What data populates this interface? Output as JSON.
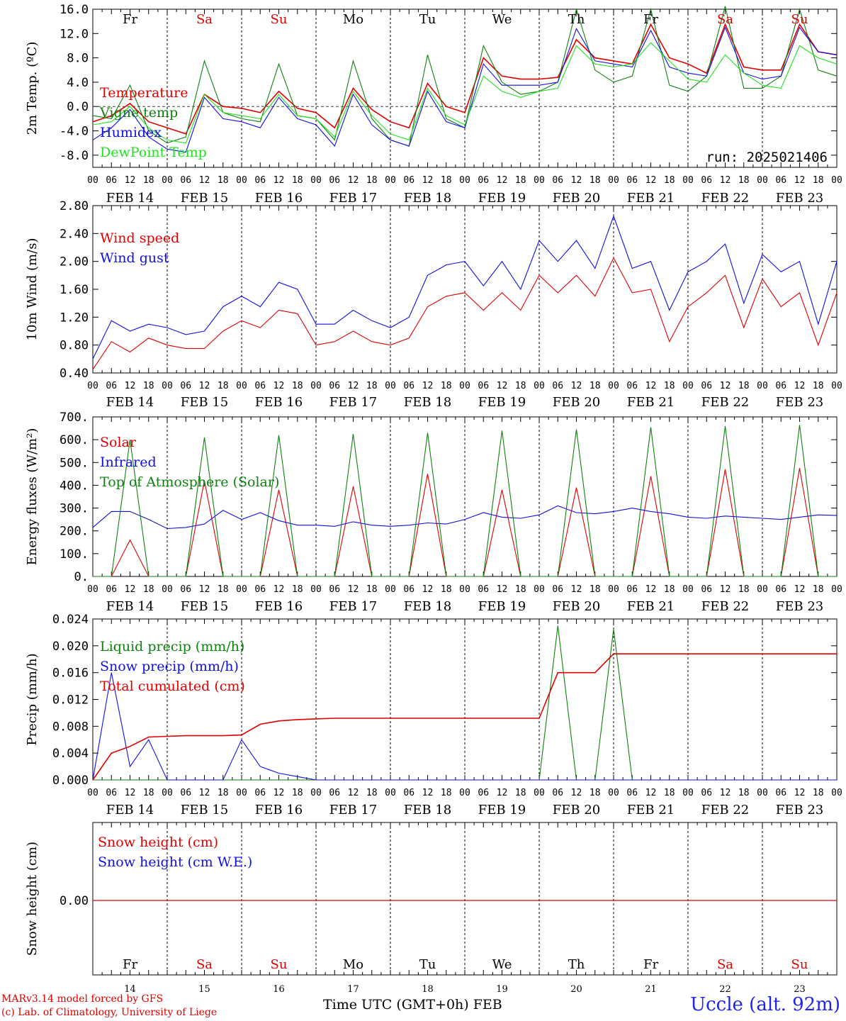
{
  "run_label": "run: 2025021406",
  "day_labels": [
    "Fr",
    "Sa",
    "Su",
    "Mo",
    "Tu",
    "We",
    "Th",
    "Fr",
    "Sa",
    "Su"
  ],
  "weekend_flags": [
    false,
    true,
    true,
    false,
    false,
    false,
    false,
    false,
    true,
    true
  ],
  "date_labels": [
    "FEB 14",
    "FEB 15",
    "FEB 16",
    "FEB 17",
    "FEB 18",
    "FEB 19",
    "FEB 20",
    "FEB 21",
    "FEB 22",
    "FEB 23"
  ],
  "day_numbers": [
    "14",
    "15",
    "16",
    "17",
    "18",
    "19",
    "20",
    "21",
    "22",
    "23"
  ],
  "hour_labels": [
    "00",
    "06",
    "12",
    "18"
  ],
  "final_hour_label": "00",
  "colors": {
    "red": "#e00000",
    "blue": "#1010e0",
    "green": "#108010",
    "lightgreen": "#22e022",
    "text_red": "#e00000",
    "text_blue": "#1010e0"
  },
  "footer": {
    "model": "MARv3.14 model forced by GFS",
    "lab": "(c) Lab. of Climatology, University of Liege",
    "time_axis": "Time UTC (GMT+0h) FEB",
    "station": "Uccle (alt. 92m)"
  },
  "chart_data": [
    {
      "type": "line",
      "id": "temperature",
      "ylabel": "2m Temp. (ºC)",
      "ylim": [
        -10,
        16
      ],
      "yticks": [
        "16.0",
        "12.0",
        "8.0",
        "4.0",
        "0.0",
        "-4.0",
        "-8.0"
      ],
      "ytick_values": [
        16,
        12,
        8,
        4,
        0,
        -4,
        -8
      ],
      "zero_line": true,
      "x_start": "FEB 14 00",
      "x_step_hours": 6,
      "series": [
        {
          "name": "Temperature",
          "color": "red",
          "values": [
            -2.5,
            -1.5,
            0.5,
            -2.5,
            -3.5,
            -4.5,
            2.0,
            0.0,
            -0.3,
            -1.0,
            2.5,
            -0.3,
            -1.0,
            -3.5,
            3.0,
            -0.5,
            -2.5,
            -3.5,
            3.8,
            0.0,
            -1.0,
            8.0,
            5.0,
            4.5,
            4.5,
            4.8,
            11.0,
            8.0,
            7.5,
            7.0,
            13.5,
            8.0,
            7.0,
            5.5,
            13.5,
            6.5,
            6.0,
            6.0,
            13.5,
            9.0,
            8.5
          ]
        },
        {
          "name": "Vigne temp",
          "color": "green",
          "values": [
            -1.5,
            -2.0,
            3.5,
            -4.0,
            -6.0,
            -5.0,
            7.5,
            -1.0,
            -2.0,
            -2.5,
            7.0,
            -1.5,
            -2.0,
            -5.5,
            7.5,
            -2.0,
            -5.5,
            -6.5,
            8.5,
            -2.0,
            -3.5,
            10.0,
            4.0,
            2.0,
            2.5,
            4.0,
            16.0,
            6.0,
            4.0,
            5.0,
            16.0,
            3.5,
            2.5,
            5.0,
            16.5,
            3.0,
            3.0,
            5.0,
            16.0,
            6.0,
            5.0
          ]
        },
        {
          "name": "Humidex",
          "color": "blue",
          "values": [
            -5.5,
            -3.5,
            -0.5,
            -5.0,
            -7.0,
            -7.5,
            1.5,
            -2.0,
            -2.5,
            -3.5,
            1.5,
            -2.0,
            -3.0,
            -6.5,
            2.0,
            -3.0,
            -5.5,
            -6.5,
            2.5,
            -2.5,
            -3.5,
            7.0,
            3.5,
            3.5,
            3.5,
            4.0,
            12.8,
            7.5,
            7.0,
            6.5,
            12.5,
            6.5,
            5.5,
            5.0,
            13.0,
            5.5,
            4.5,
            5.0,
            13.0,
            9.0,
            8.5
          ]
        },
        {
          "name": "DewPoint Temp",
          "color": "lightgreen",
          "values": [
            -3.0,
            -2.5,
            0.0,
            -3.5,
            -5.5,
            -6.0,
            2.0,
            -1.0,
            -1.5,
            -2.0,
            2.0,
            -1.5,
            -2.0,
            -5.0,
            2.5,
            -1.5,
            -4.5,
            -5.5,
            3.0,
            -1.5,
            -3.0,
            5.0,
            2.5,
            1.5,
            2.5,
            3.0,
            10.0,
            7.0,
            6.5,
            7.0,
            10.5,
            7.5,
            4.5,
            4.0,
            8.5,
            5.5,
            3.5,
            3.0,
            10.0,
            8.0,
            7.0
          ]
        }
      ]
    },
    {
      "type": "line",
      "id": "wind",
      "ylabel": "10m Wind (m/s)",
      "ylim": [
        0.4,
        2.8
      ],
      "yticks": [
        "2.80",
        "2.40",
        "2.00",
        "1.60",
        "1.20",
        "0.80",
        "0.40"
      ],
      "ytick_values": [
        2.8,
        2.4,
        2.0,
        1.6,
        1.2,
        0.8,
        0.4
      ],
      "x_start": "FEB 14 00",
      "x_step_hours": 6,
      "series": [
        {
          "name": "Wind speed",
          "color": "red",
          "values": [
            0.45,
            0.85,
            0.7,
            0.9,
            0.8,
            0.75,
            0.75,
            1.0,
            1.15,
            1.05,
            1.3,
            1.25,
            0.8,
            0.85,
            1.0,
            0.85,
            0.8,
            0.9,
            1.35,
            1.5,
            1.55,
            1.3,
            1.55,
            1.3,
            1.8,
            1.55,
            1.8,
            1.5,
            2.05,
            1.55,
            1.6,
            0.85,
            1.35,
            1.55,
            1.8,
            1.05,
            1.75,
            1.35,
            1.55,
            0.8,
            1.55
          ]
        },
        {
          "name": "Wind gust",
          "color": "blue",
          "values": [
            0.6,
            1.15,
            1.0,
            1.1,
            1.05,
            0.95,
            1.0,
            1.35,
            1.5,
            1.35,
            1.7,
            1.6,
            1.1,
            1.1,
            1.3,
            1.15,
            1.05,
            1.2,
            1.8,
            1.95,
            2.0,
            1.65,
            2.0,
            1.6,
            2.3,
            2.0,
            2.3,
            1.9,
            2.65,
            1.9,
            2.0,
            1.3,
            1.85,
            2.0,
            2.25,
            1.4,
            2.1,
            1.85,
            2.0,
            1.1,
            2.0
          ]
        }
      ]
    },
    {
      "type": "line",
      "id": "energy",
      "ylabel": "Energy fluxes (W/m²)",
      "ylim": [
        0,
        700
      ],
      "yticks": [
        "700.",
        "600.",
        "500.",
        "400.",
        "300.",
        "200.",
        "100.",
        "0."
      ],
      "ytick_values": [
        700,
        600,
        500,
        400,
        300,
        200,
        100,
        0
      ],
      "x_start": "FEB 14 00",
      "x_step_hours": 6,
      "series": [
        {
          "name": "Solar",
          "color": "red",
          "values": [
            0,
            0,
            160,
            0,
            0,
            0,
            420,
            0,
            0,
            0,
            380,
            0,
            0,
            0,
            395,
            0,
            0,
            0,
            450,
            0,
            0,
            0,
            380,
            0,
            0,
            0,
            390,
            0,
            0,
            0,
            440,
            0,
            0,
            0,
            470,
            0,
            0,
            0,
            475,
            0,
            0
          ]
        },
        {
          "name": "Infrared",
          "color": "blue",
          "values": [
            215,
            285,
            285,
            250,
            210,
            215,
            230,
            290,
            250,
            280,
            245,
            225,
            225,
            220,
            240,
            225,
            220,
            225,
            235,
            230,
            250,
            280,
            260,
            255,
            270,
            310,
            280,
            275,
            285,
            300,
            285,
            275,
            260,
            255,
            265,
            260,
            255,
            250,
            260,
            270,
            268
          ]
        },
        {
          "name": "Top of Atmosphere (Solar)",
          "color": "green",
          "values": [
            0,
            0,
            600,
            0,
            0,
            0,
            610,
            0,
            0,
            0,
            620,
            0,
            0,
            0,
            625,
            0,
            0,
            0,
            630,
            0,
            0,
            0,
            640,
            0,
            0,
            0,
            645,
            0,
            0,
            0,
            655,
            0,
            0,
            0,
            660,
            0,
            0,
            0,
            665,
            0,
            0
          ]
        }
      ]
    },
    {
      "type": "line",
      "id": "precip",
      "ylabel": "Precip (mm/h)",
      "ylim": [
        0,
        0.024
      ],
      "yticks": [
        "0.024",
        "0.020",
        "0.016",
        "0.012",
        "0.008",
        "0.004",
        "0.000"
      ],
      "ytick_values": [
        0.024,
        0.02,
        0.016,
        0.012,
        0.008,
        0.004,
        0.0
      ],
      "x_start": "FEB 14 00",
      "x_step_hours": 6,
      "series": [
        {
          "name": "Liquid precip (mm/h)",
          "color": "green",
          "values": [
            0,
            0,
            0,
            0,
            0,
            0,
            0,
            0,
            0,
            0,
            0,
            0,
            0,
            0,
            0,
            0,
            0,
            0,
            0,
            0,
            0,
            0,
            0,
            0,
            0,
            0.023,
            0,
            0,
            0.0225,
            0,
            0,
            0,
            0,
            0,
            0,
            0,
            0,
            0,
            0,
            0,
            0
          ]
        },
        {
          "name": "Snow precip (mm/h)",
          "color": "blue",
          "values": [
            0,
            0.016,
            0.002,
            0.006,
            0,
            0,
            0,
            0,
            0.006,
            0.002,
            0.001,
            0.0005,
            0,
            0,
            0,
            0,
            0,
            0,
            0,
            0,
            0,
            0,
            0,
            0,
            0,
            0,
            0,
            0,
            0,
            0,
            0,
            0,
            0,
            0,
            0,
            0,
            0,
            0,
            0,
            0,
            0
          ]
        },
        {
          "name": "Total cumulated (cm)",
          "color": "red",
          "values": [
            0,
            0.004,
            0.005,
            0.0064,
            0.0065,
            0.0066,
            0.0066,
            0.0066,
            0.0067,
            0.0083,
            0.0088,
            0.009,
            0.0091,
            0.0092,
            0.0092,
            0.0092,
            0.0092,
            0.0092,
            0.0092,
            0.0092,
            0.0092,
            0.0092,
            0.0092,
            0.0092,
            0.0092,
            0.016,
            0.016,
            0.016,
            0.0188,
            0.0188,
            0.0188,
            0.0188,
            0.0188,
            0.0188,
            0.0188,
            0.0188,
            0.0188,
            0.0188,
            0.0188,
            0.0188,
            0.0188
          ]
        }
      ]
    },
    {
      "type": "line",
      "id": "snow",
      "ylabel": "Snow height (cm)",
      "ytick": "0.00",
      "series": [
        {
          "name": "Snow height (cm)",
          "color": "red",
          "values": [
            0,
            0
          ]
        },
        {
          "name": "Snow height (cm W.E.)",
          "color": "blue",
          "values": []
        }
      ]
    }
  ]
}
